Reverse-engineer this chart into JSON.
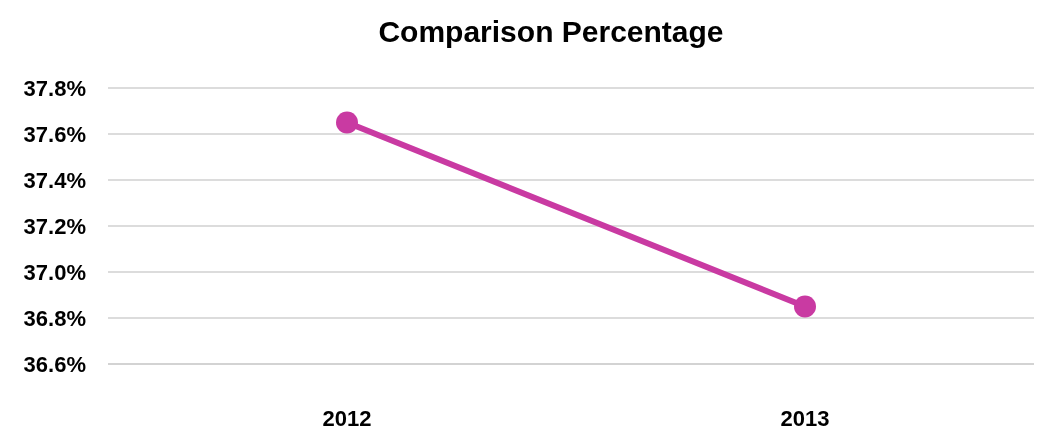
{
  "chart_data": {
    "type": "line",
    "title": "Comparison Percentage",
    "categories": [
      "2012",
      "2013"
    ],
    "series": [
      {
        "color": "#c93aa2",
        "values": [
          37.65,
          36.85
        ]
      }
    ],
    "ylim": [
      36.6,
      37.8
    ],
    "yticks": [
      {
        "value": 36.6,
        "label": "36.6%"
      },
      {
        "value": 36.8,
        "label": "36.8%"
      },
      {
        "value": 37.0,
        "label": "37.0%"
      },
      {
        "value": 37.2,
        "label": "37.2%"
      },
      {
        "value": 37.4,
        "label": "37.4%"
      },
      {
        "value": 37.6,
        "label": "37.6%"
      },
      {
        "value": 37.8,
        "label": "37.8%"
      }
    ],
    "grid": "y",
    "marker": "circle",
    "line_style": "solid"
  }
}
